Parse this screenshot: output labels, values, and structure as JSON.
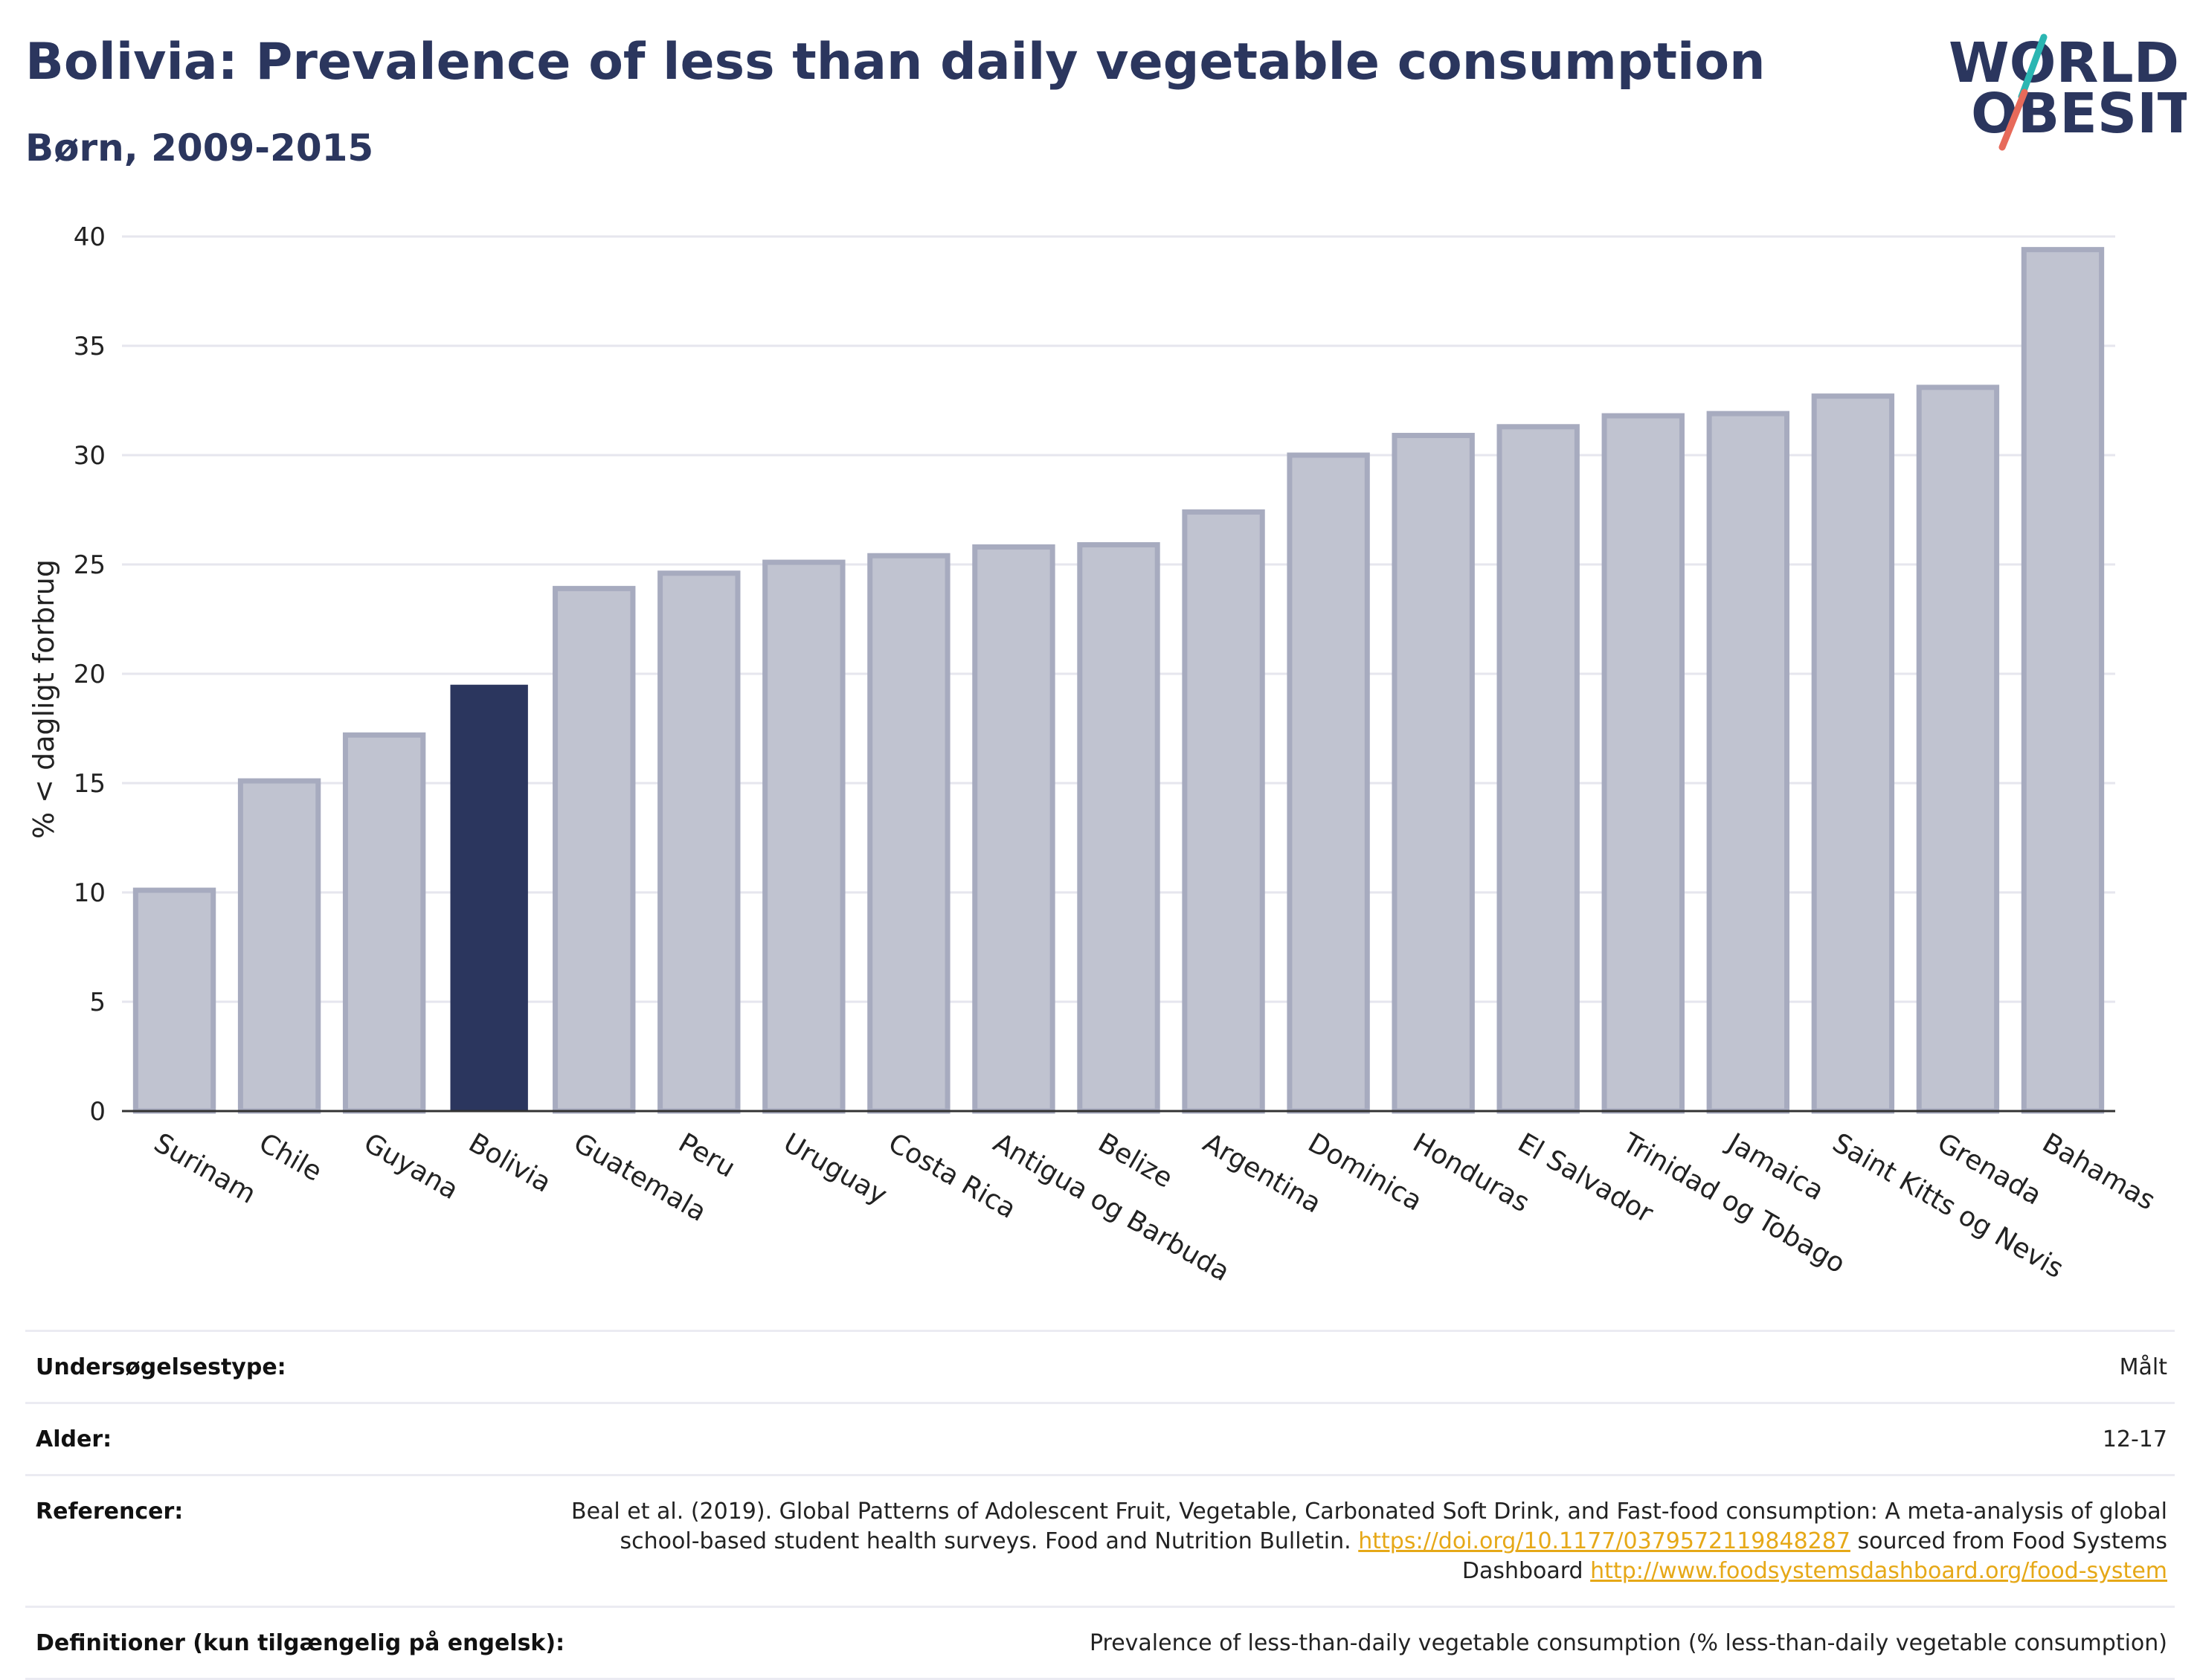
{
  "header": {
    "title": "Bolivia: Prevalence of less than daily vegetable consumption",
    "subtitle": "Børn, 2009-2015"
  },
  "logo": {
    "line1": "WORLD",
    "line2": "OBESITY",
    "accent_colors": [
      "#2bb6b2",
      "#e76a5a"
    ]
  },
  "colors": {
    "highlight": "#2b365e",
    "bar": "#c0c3d0",
    "bar_border": "#a7abbf",
    "grid": "#e6e6ee"
  },
  "chart_data": {
    "type": "bar",
    "ylabel": "% < dagligt forbrug",
    "ylim": [
      0,
      40
    ],
    "yticks": [
      0,
      5,
      10,
      15,
      20,
      25,
      30,
      35,
      40
    ],
    "grid": true,
    "highlight": "Bolivia",
    "categories": [
      "Surinam",
      "Chile",
      "Guyana",
      "Bolivia",
      "Guatemala",
      "Peru",
      "Uruguay",
      "Costa Rica",
      "Antigua og Barbuda",
      "Belize",
      "Argentina",
      "Dominica",
      "Honduras",
      "El Salvador",
      "Trinidad og Tobago",
      "Jamaica",
      "Saint Kitts og Nevis",
      "Grenada",
      "Bahamas"
    ],
    "values": [
      10.1,
      15.1,
      17.2,
      19.5,
      23.9,
      24.6,
      25.1,
      25.4,
      25.8,
      25.9,
      27.4,
      30.0,
      30.9,
      31.3,
      31.8,
      31.9,
      32.7,
      33.1,
      39.4
    ]
  },
  "info": {
    "rows": [
      {
        "label": "Undersøgelsestype:",
        "value": "Målt"
      },
      {
        "label": "Alder:",
        "value": "12-17"
      },
      {
        "label": "Referencer:",
        "value_pre": "Beal et al. (2019). Global Patterns of Adolescent Fruit, Vegetable, Carbonated Soft Drink, and Fast-food consumption: A meta-analysis of global school-based student health surveys. Food and Nutrition Bulletin.",
        "link1": "https://doi.org/10.1177/0379572119848287",
        "value_mid": "sourced from Food Systems Dashboard",
        "link2": "http://www.foodsystemsdashboard.org/food-system"
      },
      {
        "label": "Definitioner (kun tilgængelig på engelsk):",
        "value": "Prevalence of less-than-daily vegetable consumption (% less-than-daily vegetable consumption)"
      }
    ]
  }
}
